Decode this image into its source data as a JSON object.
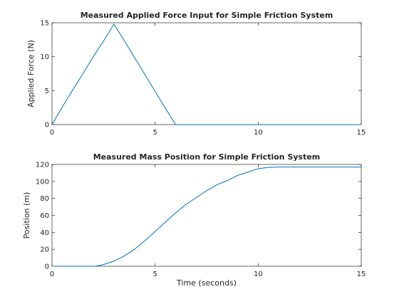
{
  "chart_data": [
    {
      "type": "line",
      "title": "Measured Applied Force Input for Simple Friction System",
      "xlabel": "",
      "ylabel": "Applied Force (N)",
      "xlim": [
        0,
        15
      ],
      "ylim": [
        0,
        15
      ],
      "xticks": [
        "0",
        "5",
        "10",
        "15"
      ],
      "yticks": [
        "0",
        "5",
        "10",
        "15"
      ],
      "grid": false,
      "series": [
        {
          "color": "#0072bd",
          "x": [
            0,
            0.5,
            1,
            1.5,
            2,
            2.5,
            3,
            3.5,
            4,
            4.5,
            5,
            5.5,
            6,
            15
          ],
          "y": [
            0,
            2.6,
            5.1,
            7.5,
            10.0,
            12.3,
            14.8,
            12.4,
            9.9,
            7.4,
            4.9,
            2.4,
            0,
            0
          ]
        }
      ]
    },
    {
      "type": "line",
      "title": "Measured Mass Position for Simple Friction System",
      "xlabel": "Time (seconds)",
      "ylabel": "Position (m)",
      "xlim": [
        0,
        15
      ],
      "ylim": [
        0,
        120
      ],
      "xticks": [
        "0",
        "5",
        "10",
        "15"
      ],
      "yticks": [
        "0",
        "20",
        "40",
        "60",
        "80",
        "100",
        "120"
      ],
      "grid": false,
      "series": [
        {
          "color": "#0072bd",
          "x": [
            0,
            2.1,
            2.5,
            3,
            3.5,
            4,
            4.5,
            5,
            5.5,
            6,
            6.5,
            7,
            7.5,
            8,
            8.5,
            9,
            9.5,
            10,
            10.5,
            11,
            12,
            13,
            14,
            15
          ],
          "y": [
            0,
            0,
            2,
            6,
            12,
            20,
            30,
            41,
            52,
            63,
            73,
            81,
            89,
            96,
            101,
            107,
            111,
            115,
            116.5,
            117,
            117,
            117,
            117,
            117
          ]
        }
      ]
    }
  ]
}
